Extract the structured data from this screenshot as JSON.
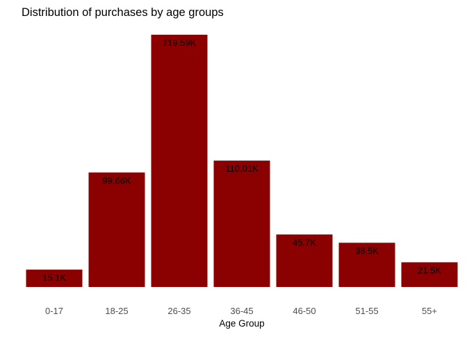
{
  "chart_data": {
    "type": "bar",
    "title": "Distribution of purchases by age groups",
    "xlabel": "Age Group",
    "ylabel": "",
    "categories": [
      "0-17",
      "18-25",
      "26-35",
      "36-45",
      "46-50",
      "51-55",
      "55+"
    ],
    "values": [
      15100,
      99660,
      219590,
      110010,
      45700,
      38500,
      21500
    ],
    "labels": [
      "15.1K",
      "99.66K",
      "219.59K",
      "110.01K",
      "45.7K",
      "38.5K",
      "21.5K"
    ],
    "ylim": [
      0,
      219590
    ],
    "y_axis_visible": false,
    "grid": false,
    "legend": "none",
    "bar_color": "#8b0000"
  }
}
